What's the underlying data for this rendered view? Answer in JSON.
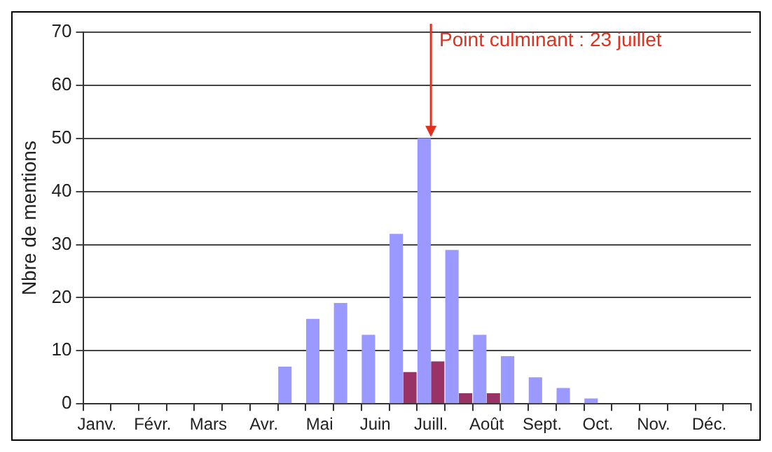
{
  "chart_data": {
    "type": "bar",
    "ylabel": "Nbre de mentions",
    "categories": [
      "Janv.",
      null,
      "Févr.",
      null,
      "Mars",
      null,
      "Avr.",
      null,
      "Mai",
      null,
      "Juin",
      null,
      "Juill.",
      null,
      "Août",
      null,
      "Sept.",
      null,
      "Oct.",
      null,
      "Nov.",
      null,
      "Déc.",
      null
    ],
    "series": [
      {
        "color": "#9999ff",
        "values": [
          0,
          0,
          0,
          0,
          0,
          0,
          0,
          7,
          16,
          19,
          13,
          32,
          50,
          29,
          13,
          9,
          5,
          3,
          1,
          0,
          0,
          0,
          0,
          0
        ]
      },
      {
        "color": "#993366",
        "values": [
          0,
          0,
          0,
          0,
          0,
          0,
          0,
          0,
          0,
          0,
          0,
          6,
          8,
          2,
          2,
          0,
          0,
          0,
          0,
          0,
          0,
          0,
          0,
          0
        ]
      }
    ],
    "ylim": [
      0,
      70
    ],
    "yticks": [
      0,
      10,
      20,
      30,
      40,
      50,
      60,
      70
    ],
    "grid": "y",
    "legend": false,
    "annotations": [
      {
        "text": "Point culminant : 23 juillet",
        "x": "Juill.",
        "y": 50
      }
    ]
  }
}
